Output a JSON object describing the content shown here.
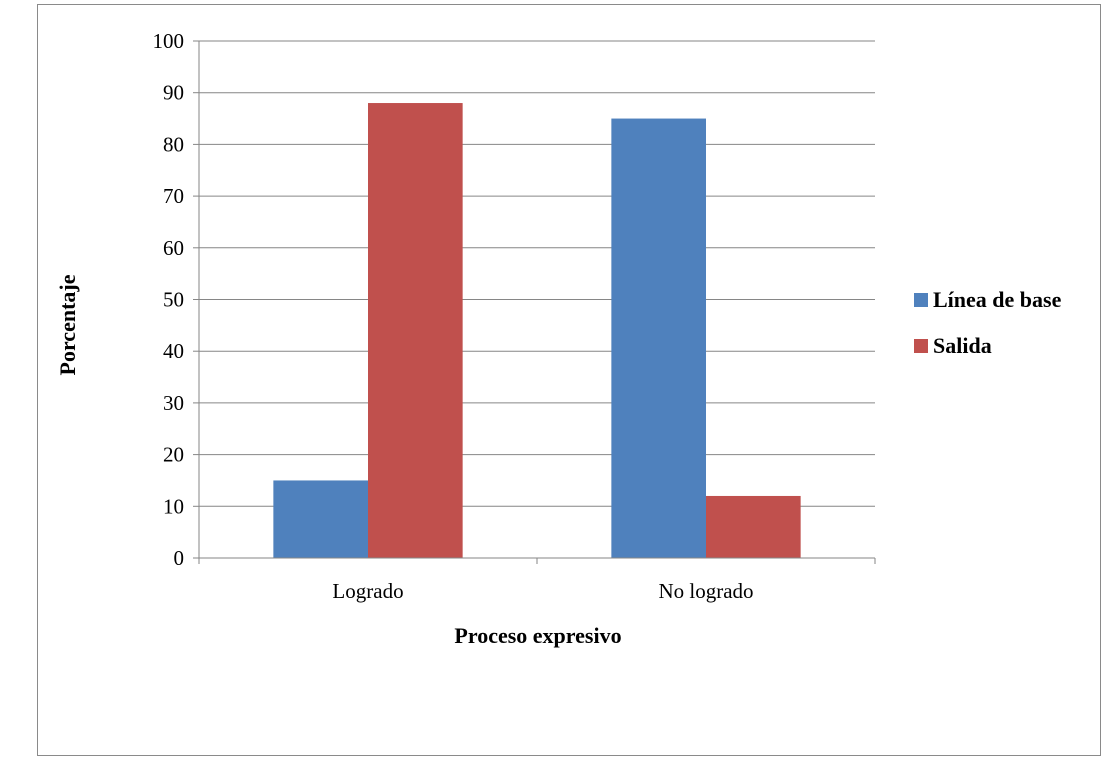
{
  "chart_data": {
    "type": "bar",
    "categories": [
      "Logrado",
      "No logrado"
    ],
    "series": [
      {
        "name": "Línea de base",
        "values": [
          15,
          85
        ],
        "color": "#4f81bd"
      },
      {
        "name": "Salida",
        "values": [
          88,
          12
        ],
        "color": "#c0504d"
      }
    ],
    "title": "",
    "xlabel": "Proceso expresivo",
    "ylabel": "Porcentaje",
    "ylim": [
      0,
      100
    ],
    "yticks": [
      0,
      10,
      20,
      30,
      40,
      50,
      60,
      70,
      80,
      90,
      100
    ],
    "grid": true,
    "legend_position": "right"
  }
}
